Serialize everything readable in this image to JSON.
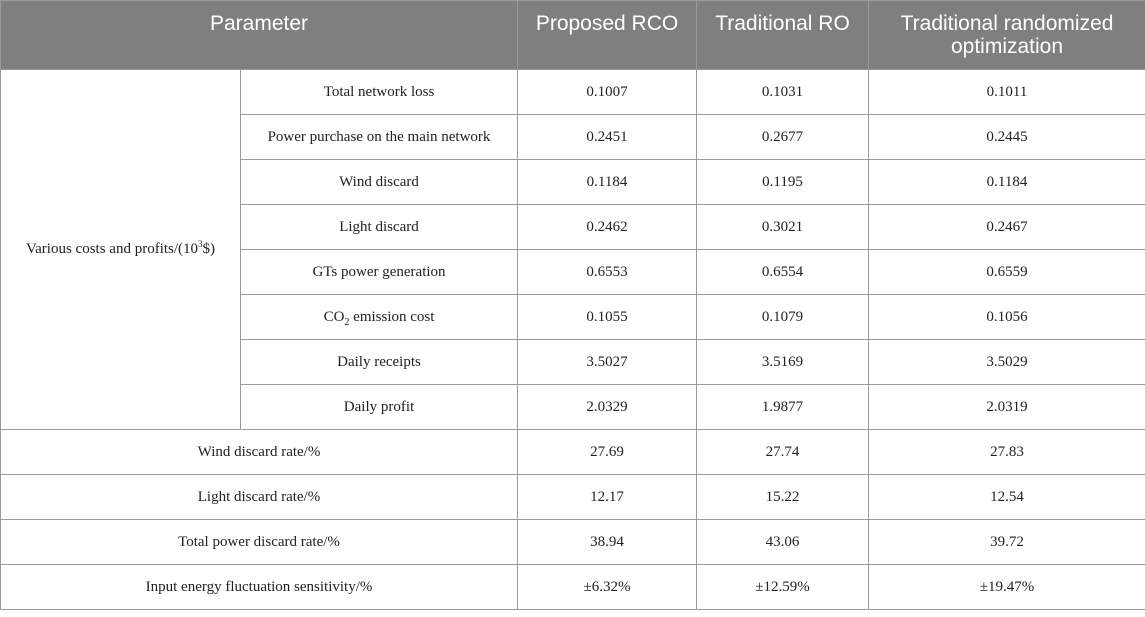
{
  "table": {
    "headers": {
      "parameter": "Parameter",
      "col1": "Proposed RCO",
      "col2": "Traditional RO",
      "col3": "Traditional randomized optimization"
    },
    "group_label": {
      "prefix": "Various costs and profits/(10",
      "sup": "3",
      "suffix": "$)"
    },
    "group_rows": [
      {
        "label": "Total network loss",
        "v1": "0.1007",
        "v2": "0.1031",
        "v3": "0.1011"
      },
      {
        "label": "Power purchase on the main network",
        "v1": "0.2451",
        "v2": "0.2677",
        "v3": "0.2445"
      },
      {
        "label": "Wind discard",
        "v1": "0.1184",
        "v2": "0.1195",
        "v3": "0.1184"
      },
      {
        "label": "Light discard",
        "v1": "0.2462",
        "v2": "0.3021",
        "v3": "0.2467"
      },
      {
        "label": "GTs power generation",
        "v1": "0.6553",
        "v2": "0.6554",
        "v3": "0.6559"
      },
      {
        "label_prefix": "CO",
        "label_sub": "2",
        "label_suffix": " emission cost",
        "v1": "0.1055",
        "v2": "0.1079",
        "v3": "0.1056"
      },
      {
        "label": "Daily receipts",
        "v1": "3.5027",
        "v2": "3.5169",
        "v3": "3.5029"
      },
      {
        "label": "Daily profit",
        "v1": "2.0329",
        "v2": "1.9877",
        "v3": "2.0319"
      }
    ],
    "rate_rows": [
      {
        "label": "Wind discard rate/%",
        "v1": "27.69",
        "v2": "27.74",
        "v3": "27.83"
      },
      {
        "label": "Light discard rate/%",
        "v1": "12.17",
        "v2": "15.22",
        "v3": "12.54"
      },
      {
        "label": "Total power discard rate/%",
        "v1": "38.94",
        "v2": "43.06",
        "v3": "39.72"
      },
      {
        "label": "Input energy fluctuation sensitivity/%",
        "v1": "±6.32%",
        "v2": "±12.59%",
        "v3": "±19.47%"
      }
    ]
  }
}
